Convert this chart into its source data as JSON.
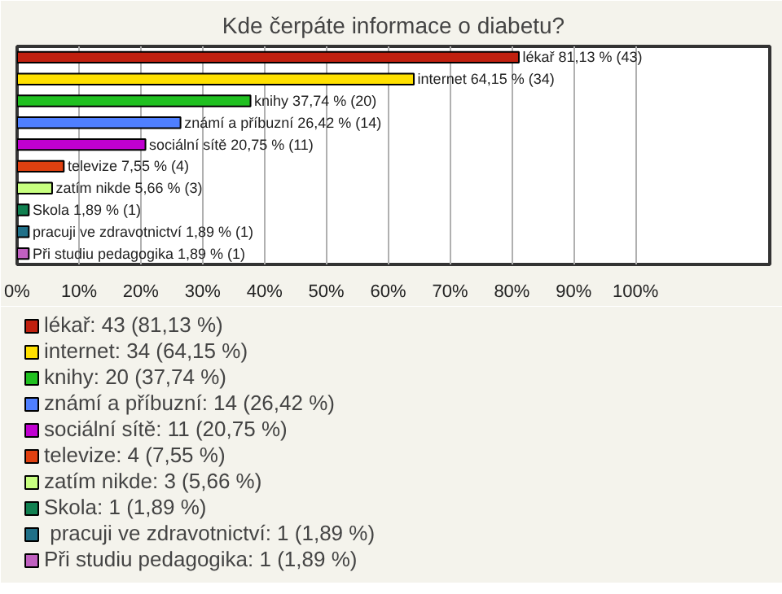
{
  "chart_data": {
    "type": "bar",
    "orientation": "horizontal",
    "stacked": true,
    "title": "Kde čerpáte informace o diabetu?",
    "categories": [
      "lékař",
      "internet",
      "knihy",
      "známí a příbuzní",
      "sociální sítě",
      "televize",
      "zatím nikde",
      "Skola",
      " pracuji ve zdravotnictví",
      "Při studiu pedagogika"
    ],
    "series": [
      {
        "name": "lékař: 43 (81,13 %)",
        "color": "#c0200f",
        "values": [
          81.13,
          null,
          null,
          null,
          null,
          null,
          null,
          null,
          null,
          null
        ],
        "value_labels": [
          "81,13 % (43)",
          null,
          null,
          null,
          null,
          null,
          null,
          null,
          null,
          null
        ]
      },
      {
        "name": "internet: 34 (64,15 %)",
        "color": "#ffe000",
        "values": [
          null,
          64.15,
          null,
          null,
          null,
          null,
          null,
          null,
          null,
          null
        ],
        "value_labels": [
          null,
          "64,15 % (34)",
          null,
          null,
          null,
          null,
          null,
          null,
          null,
          null
        ]
      },
      {
        "name": "knihy: 20 (37,74 %)",
        "color": "#20c020",
        "values": [
          null,
          null,
          37.74,
          null,
          null,
          null,
          null,
          null,
          null,
          null
        ],
        "value_labels": [
          null,
          null,
          "37,74 % (20)",
          null,
          null,
          null,
          null,
          null,
          null,
          null
        ]
      },
      {
        "name": "známí a příbuzní: 14 (26,42 %)",
        "color": "#4f7fff",
        "values": [
          null,
          null,
          null,
          26.42,
          null,
          null,
          null,
          null,
          null,
          null
        ],
        "value_labels": [
          null,
          null,
          null,
          "26,42 % (14)",
          null,
          null,
          null,
          null,
          null,
          null
        ]
      },
      {
        "name": "sociální sítě: 11 (20,75 %)",
        "color": "#c000d0",
        "values": [
          null,
          null,
          null,
          null,
          20.75,
          null,
          null,
          null,
          null,
          null
        ],
        "value_labels": [
          null,
          null,
          null,
          null,
          "20,75 % (11)",
          null,
          null,
          null,
          null,
          null
        ]
      },
      {
        "name": "televize: 4 (7,55 %)",
        "color": "#e04010",
        "values": [
          null,
          null,
          null,
          null,
          null,
          7.55,
          null,
          null,
          null,
          null
        ],
        "value_labels": [
          null,
          null,
          null,
          null,
          null,
          "7,55 % (4)",
          null,
          null,
          null,
          null
        ]
      },
      {
        "name": "zatím nikde: 3 (5,66 %)",
        "color": "#c8ff80",
        "values": [
          null,
          null,
          null,
          null,
          null,
          null,
          5.66,
          null,
          null,
          null
        ],
        "value_labels": [
          null,
          null,
          null,
          null,
          null,
          null,
          "5,66 % (3)",
          null,
          null,
          null
        ]
      },
      {
        "name": "Skola: 1 (1,89 %)",
        "color": "#108050",
        "values": [
          null,
          null,
          null,
          null,
          null,
          null,
          null,
          1.89,
          null,
          null
        ],
        "value_labels": [
          null,
          null,
          null,
          null,
          null,
          null,
          null,
          "1,89 % (1)",
          null,
          null
        ]
      },
      {
        "name": " pracuji ve zdravotnictví: 1 (1,89 %)",
        "color": "#207088",
        "values": [
          null,
          null,
          null,
          null,
          null,
          null,
          null,
          null,
          1.89,
          null
        ],
        "value_labels": [
          null,
          null,
          null,
          null,
          null,
          null,
          null,
          null,
          "1,89 % (1)",
          null
        ]
      },
      {
        "name": "Při studiu pedagogika: 1 (1,89 %)",
        "color": "#c060c0",
        "values": [
          null,
          null,
          null,
          null,
          null,
          null,
          null,
          null,
          null,
          1.89
        ],
        "value_labels": [
          null,
          null,
          null,
          null,
          null,
          null,
          null,
          null,
          null,
          "1,89 % (1)"
        ]
      }
    ],
    "xlim": [
      0,
      121.7
    ],
    "xticks": [
      {
        "value": 0,
        "label": "0%"
      },
      {
        "value": 10,
        "label": "10%"
      },
      {
        "value": 20,
        "label": "20%"
      },
      {
        "value": 30,
        "label": "30%"
      },
      {
        "value": 40,
        "label": "40%"
      },
      {
        "value": 50,
        "label": "50%"
      },
      {
        "value": 60,
        "label": "60%"
      },
      {
        "value": 70,
        "label": "70%"
      },
      {
        "value": 80,
        "label": "80%"
      },
      {
        "value": 90,
        "label": "90%"
      },
      {
        "value": 100,
        "label": "100%"
      }
    ],
    "grid": "x",
    "legend": "bottom"
  }
}
